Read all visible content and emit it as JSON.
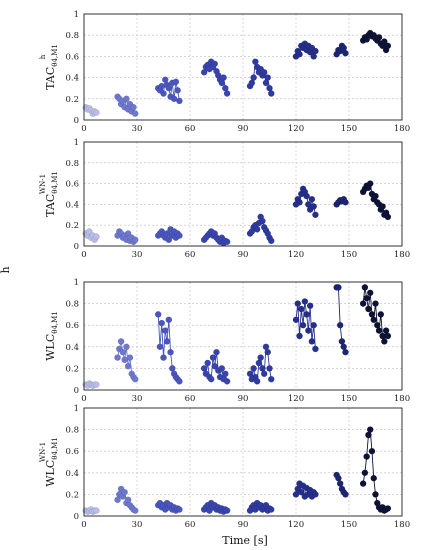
{
  "figure": {
    "left_label": "h",
    "xlabel": "Time [s]"
  },
  "chart_data": [
    {
      "type": "scatter",
      "ylabel": {
        "main": "TAC",
        "sub": "θ4,M1",
        "sup": "h"
      },
      "xlim": [
        0,
        180
      ],
      "ylim": [
        0,
        1
      ],
      "xticks": [
        0,
        30,
        60,
        90,
        120,
        150,
        180
      ],
      "yticks": [
        0,
        0.2,
        0.4,
        0.6,
        0.8,
        1
      ],
      "grid": true,
      "series": [
        {
          "color": "#b8bde6",
          "x": [
            1,
            2,
            3,
            4,
            5,
            6,
            7
          ],
          "y": [
            0.12,
            0.1,
            0.11,
            0.09,
            0.06,
            0.08,
            0.07
          ]
        },
        {
          "color": "#6d78cc",
          "x": [
            19,
            20,
            21,
            22,
            23,
            24,
            25,
            26,
            27,
            28,
            29
          ],
          "y": [
            0.22,
            0.2,
            0.15,
            0.18,
            0.12,
            0.2,
            0.1,
            0.15,
            0.08,
            0.12,
            0.06
          ]
        },
        {
          "color": "#4a56be",
          "x": [
            42,
            43,
            44,
            45,
            46,
            47,
            48,
            49,
            50,
            51,
            52,
            53,
            54
          ],
          "y": [
            0.3,
            0.28,
            0.32,
            0.25,
            0.38,
            0.33,
            0.3,
            0.22,
            0.35,
            0.2,
            0.36,
            0.28,
            0.18
          ]
        },
        {
          "color": "#3945ad",
          "x": [
            68,
            69,
            70,
            71,
            72,
            73,
            74,
            75,
            76,
            77,
            78,
            79,
            80,
            81
          ],
          "y": [
            0.45,
            0.5,
            0.52,
            0.48,
            0.55,
            0.5,
            0.53,
            0.46,
            0.42,
            0.38,
            0.35,
            0.4,
            0.3,
            0.25
          ]
        },
        {
          "color": "#2f3a9e",
          "x": [
            94,
            95,
            96,
            97,
            98,
            99,
            100,
            101,
            102,
            103,
            104,
            105,
            106
          ],
          "y": [
            0.32,
            0.35,
            0.4,
            0.55,
            0.5,
            0.45,
            0.48,
            0.42,
            0.45,
            0.35,
            0.4,
            0.3,
            0.25
          ]
        },
        {
          "color": "#252f8a",
          "x": [
            120,
            121,
            122,
            123,
            124,
            125,
            126,
            127,
            128,
            129,
            130,
            131
          ],
          "y": [
            0.6,
            0.65,
            0.62,
            0.7,
            0.68,
            0.72,
            0.66,
            0.7,
            0.64,
            0.68,
            0.6,
            0.65
          ]
        },
        {
          "color": "#1c2570",
          "x": [
            143,
            144,
            145,
            146,
            147,
            148
          ],
          "y": [
            0.62,
            0.66,
            0.65,
            0.7,
            0.68,
            0.63
          ]
        },
        {
          "color": "#0e1235",
          "x": [
            158,
            159,
            160,
            161,
            162,
            163,
            164,
            165,
            166,
            167,
            168,
            169,
            170,
            171,
            172
          ],
          "y": [
            0.75,
            0.78,
            0.76,
            0.8,
            0.82,
            0.79,
            0.8,
            0.77,
            0.75,
            0.78,
            0.72,
            0.7,
            0.74,
            0.66,
            0.7
          ]
        }
      ]
    },
    {
      "type": "scatter",
      "ylabel": {
        "main": "TAC",
        "sub": "θ4,M1",
        "sup": "WN-1"
      },
      "xlim": [
        0,
        180
      ],
      "ylim": [
        0,
        1
      ],
      "xticks": [
        0,
        30,
        60,
        90,
        120,
        150,
        180
      ],
      "yticks": [
        0,
        0.2,
        0.4,
        0.6,
        0.8,
        1
      ],
      "grid": true,
      "series": [
        {
          "color": "#b8bde6",
          "x": [
            1,
            2,
            3,
            4,
            5,
            6,
            7
          ],
          "y": [
            0.12,
            0.1,
            0.14,
            0.08,
            0.1,
            0.06,
            0.09
          ]
        },
        {
          "color": "#6d78cc",
          "x": [
            19,
            20,
            21,
            22,
            23,
            24,
            25,
            26,
            27,
            28,
            29
          ],
          "y": [
            0.1,
            0.14,
            0.12,
            0.08,
            0.1,
            0.06,
            0.12,
            0.05,
            0.08,
            0.04,
            0.06
          ]
        },
        {
          "color": "#4a56be",
          "x": [
            42,
            43,
            44,
            45,
            46,
            47,
            48,
            49,
            50,
            51,
            52,
            53,
            54
          ],
          "y": [
            0.1,
            0.12,
            0.14,
            0.1,
            0.08,
            0.12,
            0.06,
            0.16,
            0.1,
            0.14,
            0.08,
            0.12,
            0.1
          ]
        },
        {
          "color": "#3945ad",
          "x": [
            68,
            69,
            70,
            71,
            72,
            73,
            74,
            75,
            76,
            77,
            78,
            79,
            80,
            81
          ],
          "y": [
            0.06,
            0.08,
            0.1,
            0.12,
            0.14,
            0.1,
            0.12,
            0.08,
            0.06,
            0.04,
            0.08,
            0.03,
            0.05,
            0.04
          ]
        },
        {
          "color": "#2f3a9e",
          "x": [
            94,
            95,
            96,
            97,
            98,
            99,
            100,
            101,
            102,
            103,
            104,
            105,
            106
          ],
          "y": [
            0.12,
            0.14,
            0.18,
            0.2,
            0.16,
            0.22,
            0.28,
            0.24,
            0.18,
            0.15,
            0.12,
            0.08,
            0.05
          ]
        },
        {
          "color": "#252f8a",
          "x": [
            120,
            121,
            122,
            123,
            124,
            125,
            126,
            127,
            128,
            129,
            130,
            131
          ],
          "y": [
            0.4,
            0.45,
            0.42,
            0.5,
            0.55,
            0.52,
            0.48,
            0.4,
            0.35,
            0.45,
            0.38,
            0.3
          ]
        },
        {
          "color": "#1c2570",
          "x": [
            143,
            144,
            145,
            146,
            147,
            148
          ],
          "y": [
            0.4,
            0.42,
            0.44,
            0.43,
            0.45,
            0.42
          ]
        },
        {
          "color": "#0e1235",
          "x": [
            158,
            159,
            160,
            161,
            162,
            163,
            164,
            165,
            166,
            167,
            168,
            169,
            170,
            171,
            172
          ],
          "y": [
            0.52,
            0.55,
            0.58,
            0.56,
            0.6,
            0.5,
            0.45,
            0.48,
            0.42,
            0.4,
            0.35,
            0.38,
            0.3,
            0.32,
            0.28
          ]
        }
      ]
    },
    {
      "type": "scatter",
      "ylabel": {
        "main": "WLC",
        "sub": "θ4,M1",
        "sup": ""
      },
      "xlim": [
        0,
        180
      ],
      "ylim": [
        0,
        1
      ],
      "xticks": [
        0,
        30,
        60,
        90,
        120,
        150,
        180
      ],
      "yticks": [
        0,
        0.2,
        0.4,
        0.6,
        0.8,
        1
      ],
      "grid": true,
      "series": [
        {
          "color": "#b8bde6",
          "x": [
            1,
            2,
            3,
            4,
            5,
            6,
            7
          ],
          "y": [
            0.05,
            0.04,
            0.06,
            0.05,
            0.04,
            0.05,
            0.05
          ]
        },
        {
          "color": "#6d78cc",
          "x": [
            19,
            20,
            21,
            22,
            23,
            24,
            25,
            26,
            27,
            28,
            29
          ],
          "y": [
            0.3,
            0.38,
            0.45,
            0.35,
            0.28,
            0.4,
            0.22,
            0.3,
            0.15,
            0.12,
            0.1
          ]
        },
        {
          "color": "#4a56be",
          "x": [
            42,
            43,
            44,
            45,
            46,
            47,
            48,
            49,
            50,
            51,
            52,
            53,
            54
          ],
          "y": [
            0.7,
            0.4,
            0.62,
            0.3,
            0.55,
            0.45,
            0.65,
            0.35,
            0.2,
            0.15,
            0.12,
            0.1,
            0.08
          ]
        },
        {
          "color": "#3945ad",
          "x": [
            68,
            69,
            70,
            71,
            72,
            73,
            74,
            75,
            76,
            77,
            78,
            79,
            80,
            81
          ],
          "y": [
            0.2,
            0.15,
            0.25,
            0.12,
            0.1,
            0.3,
            0.22,
            0.35,
            0.18,
            0.12,
            0.2,
            0.1,
            0.15,
            0.08
          ]
        },
        {
          "color": "#2f3a9e",
          "x": [
            94,
            95,
            96,
            97,
            98,
            99,
            100,
            101,
            102,
            103,
            104,
            105,
            106
          ],
          "y": [
            0.15,
            0.1,
            0.2,
            0.12,
            0.08,
            0.25,
            0.3,
            0.2,
            0.15,
            0.4,
            0.35,
            0.2,
            0.1
          ]
        },
        {
          "color": "#252f8a",
          "x": [
            120,
            121,
            122,
            123,
            124,
            125,
            126,
            127,
            128,
            129,
            130,
            131
          ],
          "y": [
            0.65,
            0.8,
            0.5,
            0.75,
            0.6,
            0.82,
            0.7,
            0.55,
            0.78,
            0.45,
            0.6,
            0.38
          ]
        },
        {
          "color": "#1c2570",
          "x": [
            143,
            144,
            145,
            146,
            147,
            148
          ],
          "y": [
            0.95,
            0.95,
            0.6,
            0.45,
            0.4,
            0.35
          ]
        },
        {
          "color": "#0e1235",
          "x": [
            158,
            159,
            160,
            161,
            162,
            163,
            164,
            165,
            166,
            167,
            168,
            169,
            170,
            171,
            172
          ],
          "y": [
            0.8,
            0.95,
            0.85,
            0.75,
            0.9,
            0.7,
            0.65,
            0.8,
            0.6,
            0.55,
            0.7,
            0.5,
            0.45,
            0.55,
            0.5
          ]
        }
      ]
    },
    {
      "type": "scatter",
      "ylabel": {
        "main": "WLC",
        "sub": "θ4,M1",
        "sup": "WN-1"
      },
      "xlim": [
        0,
        180
      ],
      "ylim": [
        0,
        1
      ],
      "xticks": [
        0,
        30,
        60,
        90,
        120,
        150,
        180
      ],
      "yticks": [
        0,
        0.2,
        0.4,
        0.6,
        0.8,
        1
      ],
      "grid": true,
      "series": [
        {
          "color": "#b8bde6",
          "x": [
            1,
            2,
            3,
            4,
            5,
            6,
            7
          ],
          "y": [
            0.05,
            0.04,
            0.05,
            0.06,
            0.04,
            0.05,
            0.05
          ]
        },
        {
          "color": "#6d78cc",
          "x": [
            19,
            20,
            21,
            22,
            23,
            24,
            25,
            26,
            27,
            28,
            29
          ],
          "y": [
            0.15,
            0.2,
            0.25,
            0.18,
            0.22,
            0.12,
            0.15,
            0.1,
            0.08,
            0.06,
            0.05
          ]
        },
        {
          "color": "#4a56be",
          "x": [
            42,
            43,
            44,
            45,
            46,
            47,
            48,
            49,
            50,
            51,
            52,
            53,
            54
          ],
          "y": [
            0.1,
            0.12,
            0.08,
            0.1,
            0.06,
            0.12,
            0.08,
            0.1,
            0.06,
            0.08,
            0.05,
            0.07,
            0.06
          ]
        },
        {
          "color": "#3945ad",
          "x": [
            68,
            69,
            70,
            71,
            72,
            73,
            74,
            75,
            76,
            77,
            78,
            79,
            80,
            81
          ],
          "y": [
            0.06,
            0.08,
            0.1,
            0.05,
            0.12,
            0.08,
            0.1,
            0.06,
            0.08,
            0.05,
            0.07,
            0.04,
            0.06,
            0.05
          ]
        },
        {
          "color": "#2f3a9e",
          "x": [
            94,
            95,
            96,
            97,
            98,
            99,
            100,
            101,
            102,
            103,
            104,
            105,
            106
          ],
          "y": [
            0.05,
            0.08,
            0.1,
            0.06,
            0.12,
            0.08,
            0.1,
            0.06,
            0.08,
            0.1,
            0.05,
            0.07,
            0.06
          ]
        },
        {
          "color": "#252f8a",
          "x": [
            120,
            121,
            122,
            123,
            124,
            125,
            126,
            127,
            128,
            129,
            130,
            131
          ],
          "y": [
            0.2,
            0.25,
            0.3,
            0.22,
            0.28,
            0.18,
            0.26,
            0.2,
            0.24,
            0.18,
            0.22,
            0.2
          ]
        },
        {
          "color": "#1c2570",
          "x": [
            143,
            144,
            145,
            146,
            147,
            148
          ],
          "y": [
            0.38,
            0.35,
            0.3,
            0.25,
            0.22,
            0.2
          ]
        },
        {
          "color": "#0e1235",
          "x": [
            158,
            159,
            160,
            161,
            162,
            163,
            164,
            165,
            166,
            167,
            168,
            169,
            170,
            171,
            172
          ],
          "y": [
            0.3,
            0.4,
            0.55,
            0.75,
            0.8,
            0.6,
            0.35,
            0.2,
            0.12,
            0.08,
            0.06,
            0.08,
            0.05,
            0.06,
            0.07
          ]
        }
      ]
    }
  ]
}
